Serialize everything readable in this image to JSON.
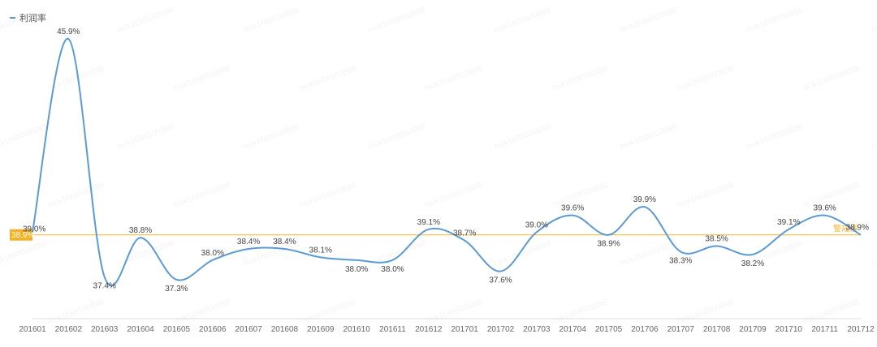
{
  "chart_data": {
    "type": "line",
    "title": "",
    "xlabel": "",
    "ylabel": "",
    "categories": [
      "201601",
      "201602",
      "201603",
      "201604",
      "201605",
      "201606",
      "201607",
      "201608",
      "201609",
      "201610",
      "201611",
      "201612",
      "201701",
      "201702",
      "201703",
      "201704",
      "201705",
      "201706",
      "201707",
      "201708",
      "201709",
      "201710",
      "201711",
      "201712"
    ],
    "series": [
      {
        "name": "利润率",
        "color": "#5b9bd5",
        "values": [
          39.0,
          45.9,
          37.4,
          38.8,
          37.3,
          38.0,
          38.4,
          38.4,
          38.1,
          38.0,
          38.0,
          39.1,
          38.7,
          37.6,
          39.0,
          39.6,
          38.9,
          39.9,
          38.3,
          38.5,
          38.2,
          39.1,
          39.6,
          38.9
        ],
        "labels": [
          "39.0%",
          "45.9%",
          "37.4%",
          "38.8%",
          "37.3%",
          "38.0%",
          "38.4%",
          "38.4%",
          "38.1%",
          "38.0%",
          "38.0%",
          "39.1%",
          "38.7%",
          "37.6%",
          "39.0%",
          "39.6%",
          "38.9%",
          "39.9%",
          "38.3%",
          "38.5%",
          "38.2%",
          "39.1%",
          "39.6%",
          "38.9%"
        ]
      }
    ],
    "reference_line": {
      "value": 38.9,
      "label": "38.9%",
      "end_label": "警戒线",
      "color": "#f5b223"
    },
    "legend": {
      "position": "top-left"
    },
    "grid": false,
    "watermark": "nick1668500898"
  }
}
